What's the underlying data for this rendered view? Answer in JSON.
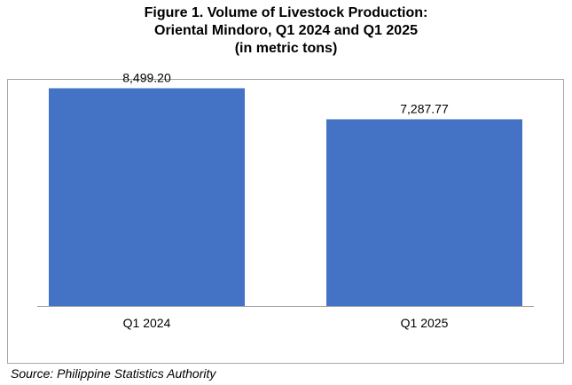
{
  "title": {
    "line1": "Figure 1. Volume of Livestock Production:",
    "line2": "Oriental Mindoro, Q1 2024 and Q1 2025",
    "line3": "(in metric tons)"
  },
  "source": "Source: Philippine Statistics Authority",
  "colors": {
    "bar": "#4472c4",
    "axis": "#a6a6a6"
  },
  "chart_data": {
    "type": "bar",
    "title": "Figure 1. Volume of Livestock Production: Oriental Mindoro, Q1 2024 and Q1 2025 (in metric tons)",
    "categories": [
      "Q1 2024",
      "Q1 2025"
    ],
    "values": [
      8499.2,
      7287.77
    ],
    "data_labels": [
      "8,499.20",
      "7,287.77"
    ],
    "xlabel": "",
    "ylabel": "",
    "ylim": [
      0,
      9000
    ],
    "grid": false,
    "legend": "none"
  }
}
